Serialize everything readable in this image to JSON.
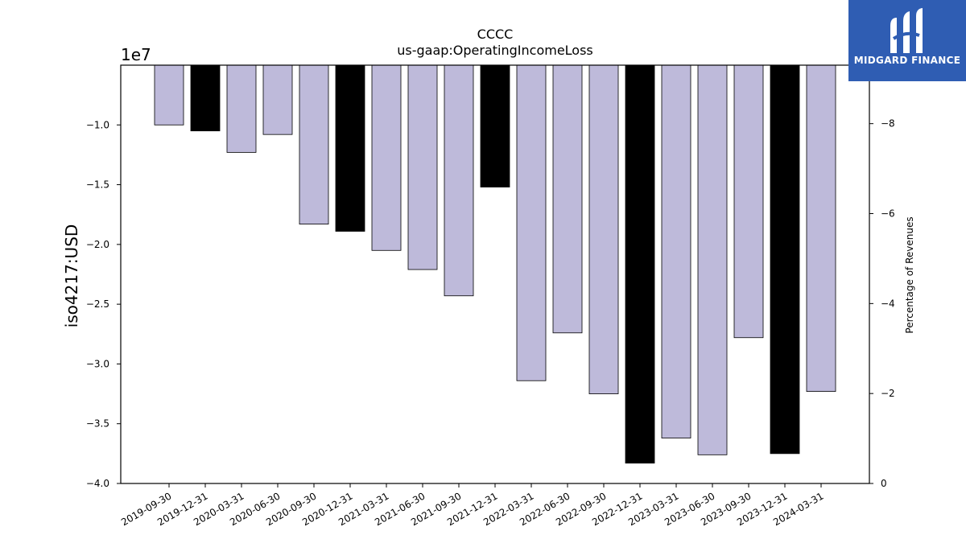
{
  "chart_data": {
    "type": "bar",
    "title": "CCCC",
    "subtitle": "us-gaap:OperatingIncomeLoss",
    "ylabel": "iso4217:USD",
    "y_exponent_label": "1e7",
    "right_ylabel": "Percentage of Revenues",
    "ylim": [
      -40000000,
      -5000000
    ],
    "yticks": [
      -10000000,
      -15000000,
      -20000000,
      -25000000,
      -30000000,
      -35000000,
      -40000000
    ],
    "ytick_labels": [
      "−1.0",
      "−1.5",
      "−2.0",
      "−2.5",
      "−3.0",
      "−3.5",
      "−4.0"
    ],
    "right_ylim": [
      0,
      -9.3
    ],
    "right_yticks": [
      -8,
      -6,
      -4,
      -2,
      0
    ],
    "right_ytick_labels": [
      "−8",
      "−6",
      "−4",
      "−2",
      "0"
    ],
    "categories": [
      "2019-09-30",
      "2019-12-31",
      "2020-03-31",
      "2020-06-30",
      "2020-09-30",
      "2020-12-31",
      "2021-03-31",
      "2021-06-30",
      "2021-09-30",
      "2021-12-31",
      "2022-03-31",
      "2022-06-30",
      "2022-09-30",
      "2022-12-31",
      "2023-03-31",
      "2023-06-30",
      "2023-09-30",
      "2023-12-31",
      "2024-03-31"
    ],
    "values": [
      -10000000,
      -10500000,
      -12300000,
      -10800000,
      -18300000,
      -18900000,
      -20500000,
      -22100000,
      -24300000,
      -15200000,
      -31400000,
      -27400000,
      -32500000,
      -38300000,
      -36200000,
      -37600000,
      -27800000,
      -37500000,
      -32300000
    ],
    "bar_types": [
      "quarter",
      "annual",
      "quarter",
      "quarter",
      "quarter",
      "annual",
      "quarter",
      "quarter",
      "quarter",
      "annual",
      "quarter",
      "quarter",
      "quarter",
      "annual",
      "quarter",
      "quarter",
      "quarter",
      "annual",
      "quarter"
    ],
    "colors": {
      "quarter": "#bebada",
      "annual": "#000000"
    },
    "grid": false
  },
  "logo": {
    "text": "MIDGARD FINANCE",
    "background": "#2f5db3"
  }
}
